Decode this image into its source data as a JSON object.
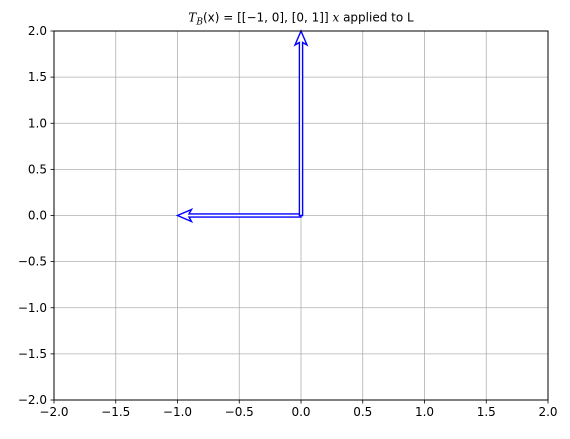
{
  "chart_data": {
    "type": "quiver",
    "title": {
      "prefix": "T",
      "subscript": "B",
      "formula": "(x) = [[−1, 0], [0, 1]]",
      "var": "x",
      "suffix": " applied to L"
    },
    "xlabel": "",
    "ylabel": "",
    "xlim": [
      -2.0,
      2.0
    ],
    "ylim": [
      -2.0,
      2.0
    ],
    "xticks": [
      "−2.0",
      "−1.5",
      "−1.0",
      "−0.5",
      "0.0",
      "0.5",
      "1.0",
      "1.5",
      "2.0"
    ],
    "yticks": [
      "−2.0",
      "−1.5",
      "−1.0",
      "−0.5",
      "0.0",
      "0.5",
      "1.0",
      "1.5",
      "2.0"
    ],
    "xtick_values": [
      -2.0,
      -1.5,
      -1.0,
      -0.5,
      0.0,
      0.5,
      1.0,
      1.5,
      2.0
    ],
    "ytick_values": [
      -2.0,
      -1.5,
      -1.0,
      -0.5,
      0.0,
      0.5,
      1.0,
      1.5,
      2.0
    ],
    "grid": true,
    "vectors": [
      {
        "x0": 0,
        "y0": 0,
        "dx": -1,
        "dy": 0
      },
      {
        "x0": 0,
        "y0": 0,
        "dx": 0,
        "dy": 2
      }
    ],
    "colors": {
      "vector": "#0000ff",
      "grid": "#b0b0b0",
      "axes": "#000000"
    }
  }
}
